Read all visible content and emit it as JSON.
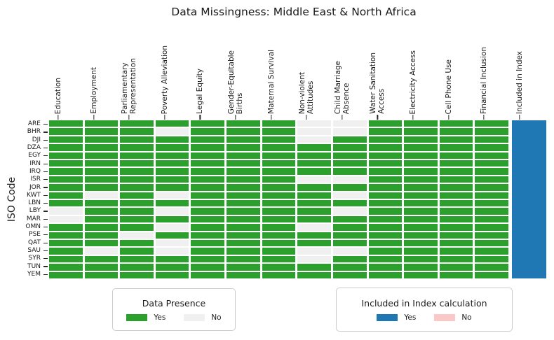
{
  "title": "Data Missingness: Middle East & North Africa",
  "y_axis_label": "ISO Code",
  "legends": {
    "data_presence": {
      "title": "Data Presence",
      "yes_label": "Yes",
      "no_label": "No"
    },
    "included": {
      "title": "Included in Index calculation",
      "yes_label": "Yes",
      "no_label": "No"
    }
  },
  "colors": {
    "present": "#2ca02c",
    "absent": "#f0f0f0",
    "included_yes": "#1f77b4",
    "included_no": "#fbc8c8"
  },
  "chart_data": {
    "type": "heatmap",
    "title": "Data Missingness: Middle East & North Africa",
    "ylabel": "ISO Code",
    "legend_position": "bottom",
    "columns": [
      "Education",
      "Employment",
      "Parliamentary\nRepresentation",
      "Poverty Alleviation",
      "Legal Equity",
      "Gender-Equitable\nBirths",
      "Maternal Survival",
      "Non-violent\nAttitudes",
      "Child Marriage\nAbsence",
      "Water Sanitation\nAccess",
      "Electricity Access",
      "Cell Phone Use",
      "Financial Inclusion"
    ],
    "included_column": "Included in Index",
    "rows": [
      "ARE",
      "BHR",
      "DJI",
      "DZA",
      "EGY",
      "IRN",
      "IRQ",
      "ISR",
      "JOR",
      "KWT",
      "LBN",
      "LBY",
      "MAR",
      "OMN",
      "PSE",
      "QAT",
      "SAU",
      "SYR",
      "TUN",
      "YEM"
    ],
    "value_meaning": {
      "1": "Yes (data present)",
      "0": "No (data missing)"
    },
    "presence": [
      [
        1,
        1,
        1,
        1,
        1,
        1,
        1,
        0,
        0,
        1,
        1,
        1,
        1
      ],
      [
        1,
        1,
        1,
        0,
        1,
        1,
        1,
        0,
        0,
        1,
        1,
        1,
        1
      ],
      [
        1,
        1,
        1,
        1,
        1,
        1,
        1,
        0,
        1,
        1,
        1,
        1,
        1
      ],
      [
        1,
        1,
        1,
        1,
        1,
        1,
        1,
        1,
        1,
        1,
        1,
        1,
        1
      ],
      [
        1,
        1,
        1,
        1,
        1,
        1,
        1,
        1,
        1,
        1,
        1,
        1,
        1
      ],
      [
        1,
        1,
        1,
        1,
        1,
        1,
        1,
        1,
        1,
        1,
        1,
        1,
        1
      ],
      [
        1,
        1,
        1,
        1,
        1,
        1,
        1,
        1,
        1,
        1,
        1,
        1,
        1
      ],
      [
        1,
        1,
        1,
        1,
        1,
        1,
        1,
        0,
        0,
        1,
        1,
        1,
        1
      ],
      [
        1,
        1,
        1,
        1,
        1,
        1,
        1,
        1,
        1,
        1,
        1,
        1,
        1
      ],
      [
        1,
        0,
        1,
        0,
        1,
        1,
        1,
        1,
        0,
        1,
        1,
        1,
        1
      ],
      [
        1,
        1,
        1,
        1,
        1,
        1,
        1,
        1,
        1,
        1,
        1,
        1,
        1
      ],
      [
        0,
        1,
        1,
        0,
        1,
        1,
        1,
        1,
        0,
        1,
        1,
        1,
        1
      ],
      [
        0,
        1,
        1,
        1,
        1,
        1,
        1,
        1,
        1,
        1,
        1,
        1,
        1
      ],
      [
        1,
        1,
        1,
        0,
        1,
        1,
        1,
        0,
        1,
        1,
        1,
        1,
        1
      ],
      [
        1,
        1,
        0,
        1,
        1,
        1,
        1,
        1,
        1,
        1,
        1,
        1,
        1
      ],
      [
        1,
        1,
        1,
        0,
        1,
        1,
        1,
        1,
        1,
        1,
        1,
        1,
        1
      ],
      [
        1,
        0,
        1,
        0,
        1,
        1,
        1,
        0,
        0,
        1,
        1,
        1,
        1
      ],
      [
        1,
        1,
        1,
        1,
        1,
        1,
        1,
        0,
        1,
        1,
        1,
        1,
        1
      ],
      [
        1,
        1,
        1,
        1,
        1,
        1,
        1,
        1,
        1,
        1,
        1,
        1,
        1
      ],
      [
        1,
        1,
        1,
        1,
        1,
        1,
        1,
        1,
        1,
        1,
        1,
        1,
        1
      ]
    ],
    "included_in_index": [
      1,
      1,
      1,
      1,
      1,
      1,
      1,
      1,
      1,
      1,
      1,
      1,
      1,
      1,
      1,
      1,
      1,
      1,
      1,
      1
    ]
  }
}
